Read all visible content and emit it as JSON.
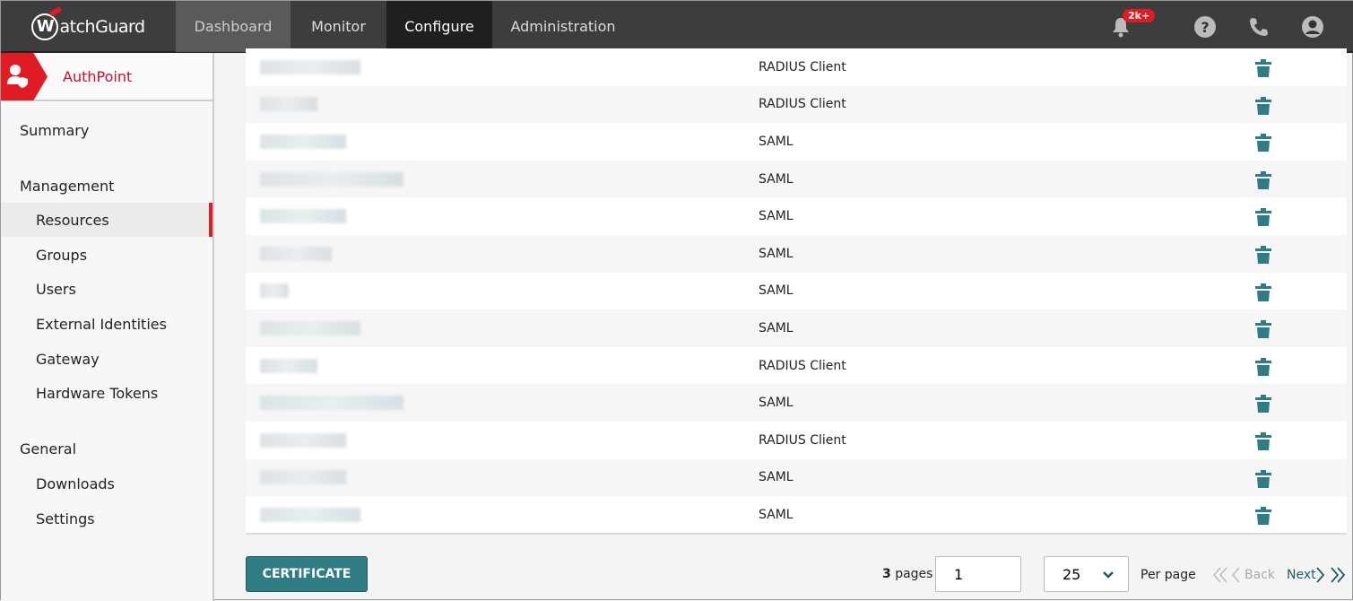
{
  "header": {
    "logo": "WatchGuard",
    "nav": [
      "Dashboard",
      "Monitor",
      "Configure",
      "Administration"
    ],
    "active": "Configure",
    "notification_badge": "2k+"
  },
  "sidebar": {
    "app": "AuthPoint",
    "summary": "Summary",
    "management": "Management",
    "items": [
      "Resources",
      "Groups",
      "Users",
      "External Identities",
      "Gateway",
      "Hardware Tokens"
    ],
    "general": "General",
    "general_items": [
      "Downloads",
      "Settings"
    ],
    "selected": "Resources",
    "accent": "#e01b24"
  },
  "table": {
    "rows": [
      {
        "type": "RADIUS Client"
      },
      {
        "type": "RADIUS Client"
      },
      {
        "type": "SAML"
      },
      {
        "type": "SAML"
      },
      {
        "type": "SAML"
      },
      {
        "type": "SAML"
      },
      {
        "type": "SAML"
      },
      {
        "type": "SAML"
      },
      {
        "type": "RADIUS Client"
      },
      {
        "type": "SAML"
      },
      {
        "type": "RADIUS Client"
      },
      {
        "type": "SAML"
      },
      {
        "type": "SAML"
      }
    ],
    "delete_icon": "trash-icon",
    "icon_color": "#2f7c84"
  },
  "footer": {
    "certificate": "CERTIFICATE",
    "pages_count": "3",
    "pages_label": "pages",
    "page_value": "1",
    "per_page_value": "25",
    "per_page_label": "Per page",
    "back": "Back",
    "next": "Next"
  }
}
